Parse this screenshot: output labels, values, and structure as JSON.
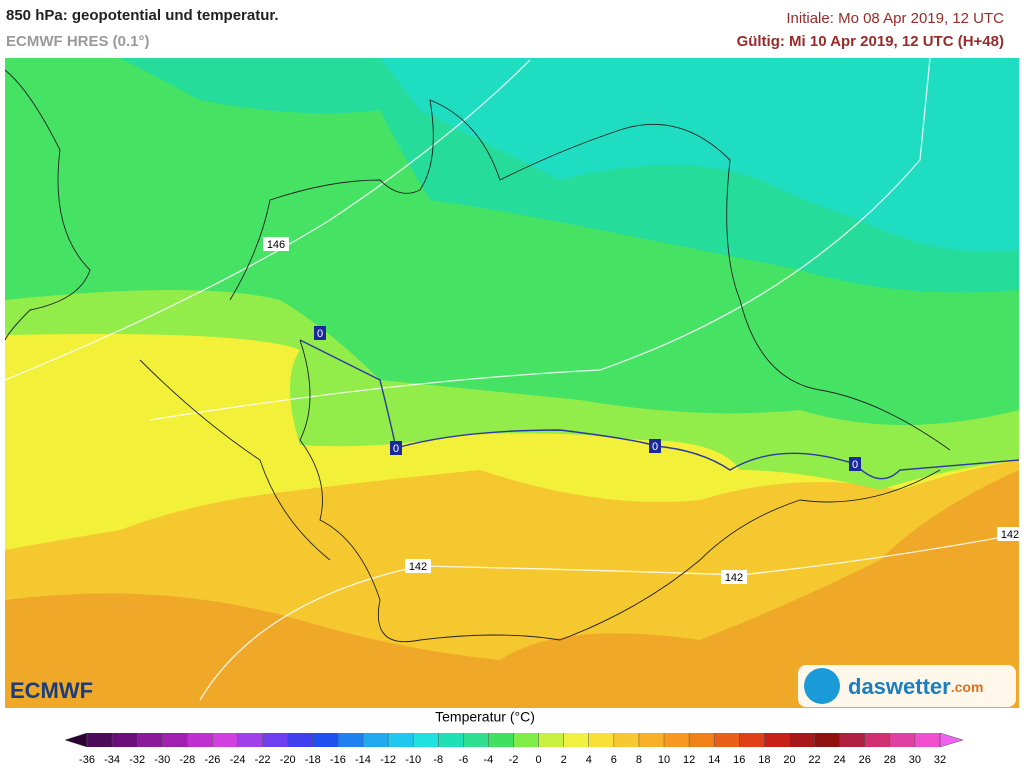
{
  "header": {
    "title": "850 hPa: geopotential und temperatur.",
    "subtitle": "ECMWF HRES (0.1°)",
    "initial": "Initiale: Mo 08 Apr 2019, 12 UTC",
    "valid": "Gültig: Mi 10 Apr 2019, 12 UTC (H+48)"
  },
  "map": {
    "geopotential_labels": [
      146,
      142,
      142,
      142
    ],
    "isotherm_labels": [
      0,
      0,
      0,
      0
    ]
  },
  "legend": {
    "title": "Temperatur (°C)",
    "ticks": [
      -36,
      -34,
      -32,
      -30,
      -28,
      -26,
      -24,
      -22,
      -20,
      -18,
      -16,
      -14,
      -12,
      -10,
      -8,
      -6,
      -4,
      -2,
      0,
      2,
      4,
      6,
      8,
      10,
      12,
      14,
      16,
      18,
      20,
      22,
      24,
      26,
      28,
      30,
      32
    ],
    "colors": [
      "#2a0030",
      "#4b0a5a",
      "#6a0f7a",
      "#8a1a9a",
      "#a020b0",
      "#c030d0",
      "#d040e0",
      "#a040e8",
      "#7040f0",
      "#4040f0",
      "#2050f0",
      "#2080f0",
      "#20a8f0",
      "#20c8f0",
      "#20e0e0",
      "#20e0b8",
      "#30e090",
      "#40e060",
      "#80ec48",
      "#c8f040",
      "#f0f040",
      "#f8e038",
      "#f8c830",
      "#f8b028",
      "#f89820",
      "#f08018",
      "#e86018",
      "#e04018",
      "#c82018",
      "#a81818",
      "#901010",
      "#b02040",
      "#d03070",
      "#e040a0",
      "#f050d0",
      "#f060f0"
    ]
  },
  "logos": {
    "left": "ECMWF",
    "right_name": "daswetter",
    "right_suffix": ".com"
  }
}
